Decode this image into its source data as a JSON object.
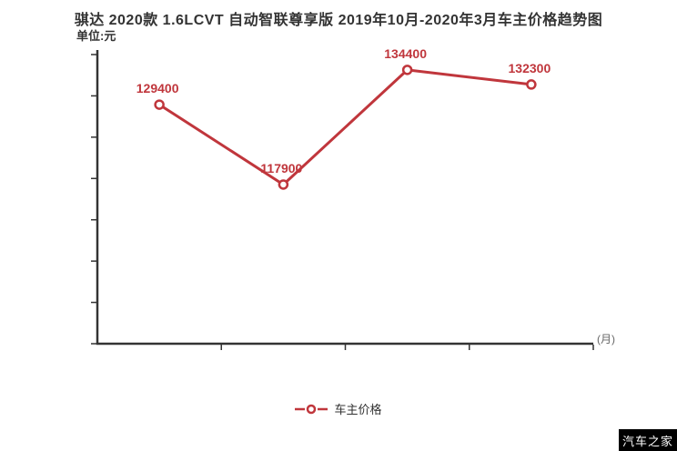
{
  "header": {
    "title": "骐达 2020款 1.6LCVT 自动智联尊享版 2019年10月-2020年3月车主价格趋势图",
    "unit_label": "单位:元"
  },
  "chart_data": {
    "type": "line",
    "categories": [
      "",
      "",
      "",
      ""
    ],
    "series": [
      {
        "name": "车主价格",
        "values": [
          129400,
          117900,
          134400,
          132300
        ]
      }
    ],
    "data_labels": [
      "129400",
      "117900",
      "134400",
      "132300"
    ],
    "ylim": [
      95000,
      137000
    ],
    "y_axis_unit": "单位:元",
    "x_axis_suffix": "(月)",
    "grid": false,
    "x_tick_labels_visible": false,
    "y_tick_labels_visible": false,
    "legend_position": "bottom-center",
    "line_color": "#c0363c",
    "label_color": "#c0363c",
    "axis_color": "#333333"
  },
  "legend": {
    "label": "车主价格"
  },
  "watermark": {
    "text": "汽车之家"
  }
}
